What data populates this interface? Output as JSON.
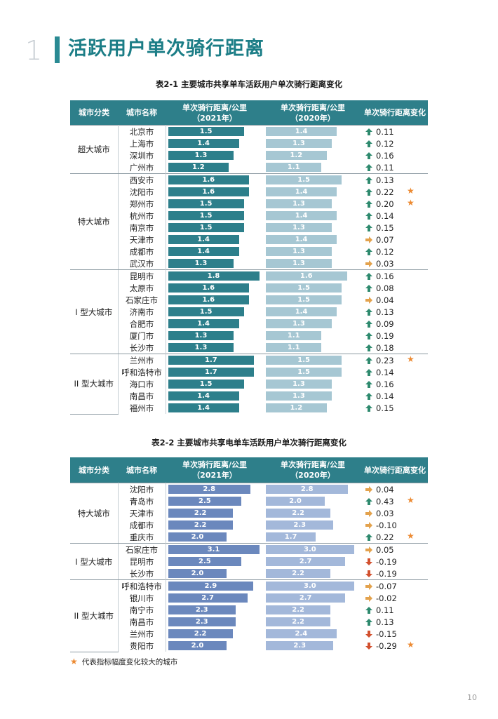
{
  "section": {
    "number": "1",
    "title": "活跃用户单次骑行距离"
  },
  "colors": {
    "up": "#2e8a6e",
    "right": "#e3a24d",
    "down": "#d2502e",
    "star": "#ec8a32"
  },
  "icons": {
    "up": "up-arrow-icon",
    "right": "right-arrow-icon",
    "down": "down-arrow-icon",
    "star": "star-icon"
  },
  "table1": {
    "caption": "表2-1 主要城市共享单车活跃用户单次骑行距离变化",
    "headers": [
      "城市分类",
      "城市名称",
      "单次骑行距离/公里\n（2021年）",
      "单次骑行距离/公里\n（2020年）",
      "单次骑行距离变化"
    ],
    "bar_max": 1.8,
    "groups": [
      {
        "category": "超大城市",
        "rows": [
          {
            "city": "北京市",
            "v2021": "1.5",
            "v2020": "1.4",
            "trend": "up",
            "change": "0.11",
            "star": false
          },
          {
            "city": "上海市",
            "v2021": "1.4",
            "v2020": "1.3",
            "trend": "up",
            "change": "0.12",
            "star": false
          },
          {
            "city": "深圳市",
            "v2021": "1.3",
            "v2020": "1.2",
            "trend": "up",
            "change": "0.16",
            "star": false
          },
          {
            "city": "广州市",
            "v2021": "1.2",
            "v2020": "1.1",
            "trend": "up",
            "change": "0.11",
            "star": false
          }
        ]
      },
      {
        "category": "特大城市",
        "rows": [
          {
            "city": "西安市",
            "v2021": "1.6",
            "v2020": "1.5",
            "trend": "up",
            "change": "0.13",
            "star": false
          },
          {
            "city": "沈阳市",
            "v2021": "1.6",
            "v2020": "1.4",
            "trend": "up",
            "change": "0.22",
            "star": true
          },
          {
            "city": "郑州市",
            "v2021": "1.5",
            "v2020": "1.3",
            "trend": "up",
            "change": "0.20",
            "star": true
          },
          {
            "city": "杭州市",
            "v2021": "1.5",
            "v2020": "1.4",
            "trend": "up",
            "change": "0.14",
            "star": false
          },
          {
            "city": "南京市",
            "v2021": "1.5",
            "v2020": "1.3",
            "trend": "up",
            "change": "0.15",
            "star": false
          },
          {
            "city": "天津市",
            "v2021": "1.4",
            "v2020": "1.4",
            "trend": "right",
            "change": "0.07",
            "star": false
          },
          {
            "city": "成都市",
            "v2021": "1.4",
            "v2020": "1.3",
            "trend": "up",
            "change": "0.12",
            "star": false
          },
          {
            "city": "武汉市",
            "v2021": "1.3",
            "v2020": "1.3",
            "trend": "right",
            "change": "0.03",
            "star": false
          }
        ]
      },
      {
        "category": "I 型大城市",
        "rows": [
          {
            "city": "昆明市",
            "v2021": "1.8",
            "v2020": "1.6",
            "trend": "up",
            "change": "0.16",
            "star": false
          },
          {
            "city": "太原市",
            "v2021": "1.6",
            "v2020": "1.5",
            "trend": "up",
            "change": "0.08",
            "star": false
          },
          {
            "city": "石家庄市",
            "v2021": "1.6",
            "v2020": "1.5",
            "trend": "right",
            "change": "0.04",
            "star": false
          },
          {
            "city": "济南市",
            "v2021": "1.5",
            "v2020": "1.4",
            "trend": "up",
            "change": "0.13",
            "star": false
          },
          {
            "city": "合肥市",
            "v2021": "1.4",
            "v2020": "1.3",
            "trend": "up",
            "change": "0.09",
            "star": false
          },
          {
            "city": "厦门市",
            "v2021": "1.3",
            "v2020": "1.1",
            "trend": "up",
            "change": "0.19",
            "star": false
          },
          {
            "city": "长沙市",
            "v2021": "1.3",
            "v2020": "1.1",
            "trend": "up",
            "change": "0.18",
            "star": false
          }
        ]
      },
      {
        "category": "II 型大城市",
        "rows": [
          {
            "city": "兰州市",
            "v2021": "1.7",
            "v2020": "1.5",
            "trend": "up",
            "change": "0.23",
            "star": true
          },
          {
            "city": "呼和浩特市",
            "v2021": "1.7",
            "v2020": "1.5",
            "trend": "up",
            "change": "0.14",
            "star": false
          },
          {
            "city": "海口市",
            "v2021": "1.5",
            "v2020": "1.3",
            "trend": "up",
            "change": "0.16",
            "star": false
          },
          {
            "city": "南昌市",
            "v2021": "1.4",
            "v2020": "1.3",
            "trend": "up",
            "change": "0.14",
            "star": false
          },
          {
            "city": "福州市",
            "v2021": "1.4",
            "v2020": "1.2",
            "trend": "up",
            "change": "0.15",
            "star": false
          }
        ]
      }
    ]
  },
  "table2": {
    "caption": "表2-2 主要城市共享电单车活跃用户单次骑行距离变化",
    "headers": [
      "城市分类",
      "城市名称",
      "单次骑行距离/公里\n（2021年）",
      "单次骑行距离/公里\n（2020年）",
      "单次骑行距离变化"
    ],
    "bar_max": 3.1,
    "groups": [
      {
        "category": "特大城市",
        "rows": [
          {
            "city": "沈阳市",
            "v2021": "2.8",
            "v2020": "2.8",
            "trend": "right",
            "change": "0.04",
            "star": false
          },
          {
            "city": "青岛市",
            "v2021": "2.5",
            "v2020": "2.0",
            "trend": "up",
            "change": "0.43",
            "star": true
          },
          {
            "city": "天津市",
            "v2021": "2.2",
            "v2020": "2.2",
            "trend": "right",
            "change": "0.03",
            "star": false
          },
          {
            "city": "成都市",
            "v2021": "2.2",
            "v2020": "2.3",
            "trend": "right",
            "change": "-0.10",
            "star": false
          },
          {
            "city": "重庆市",
            "v2021": "2.0",
            "v2020": "1.7",
            "trend": "up",
            "change": "0.22",
            "star": true
          }
        ]
      },
      {
        "category": "I 型大城市",
        "rows": [
          {
            "city": "石家庄市",
            "v2021": "3.1",
            "v2020": "3.0",
            "trend": "right",
            "change": "0.05",
            "star": false
          },
          {
            "city": "昆明市",
            "v2021": "2.5",
            "v2020": "2.7",
            "trend": "down",
            "change": "-0.19",
            "star": false
          },
          {
            "city": "长沙市",
            "v2021": "2.0",
            "v2020": "2.2",
            "trend": "down",
            "change": "-0.19",
            "star": false
          }
        ]
      },
      {
        "category": "II 型大城市",
        "rows": [
          {
            "city": "呼和浩特市",
            "v2021": "2.9",
            "v2020": "3.0",
            "trend": "right",
            "change": "-0.07",
            "star": false
          },
          {
            "city": "银川市",
            "v2021": "2.7",
            "v2020": "2.7",
            "trend": "right",
            "change": "-0.02",
            "star": false
          },
          {
            "city": "南宁市",
            "v2021": "2.3",
            "v2020": "2.2",
            "trend": "up",
            "change": "0.11",
            "star": false
          },
          {
            "city": "南昌市",
            "v2021": "2.3",
            "v2020": "2.2",
            "trend": "up",
            "change": "0.13",
            "star": false
          },
          {
            "city": "兰州市",
            "v2021": "2.2",
            "v2020": "2.4",
            "trend": "down",
            "change": "-0.15",
            "star": false
          },
          {
            "city": "贵阳市",
            "v2021": "2.0",
            "v2020": "2.3",
            "trend": "down",
            "change": "-0.29",
            "star": true
          }
        ]
      }
    ]
  },
  "legend": {
    "text": "代表指标幅度变化较大的城市"
  },
  "page_number": "10"
}
